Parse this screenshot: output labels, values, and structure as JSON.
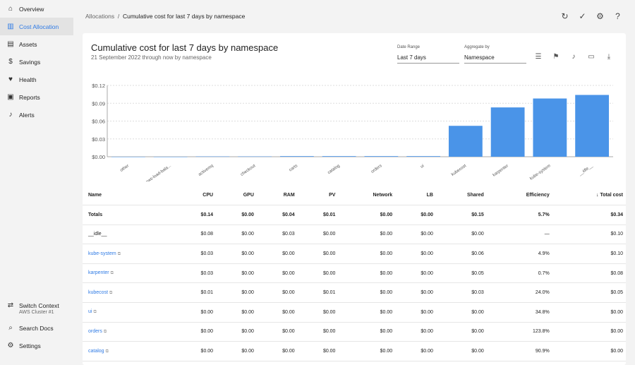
{
  "sidebar": {
    "items": [
      {
        "label": "Overview",
        "icon": "home-icon"
      },
      {
        "label": "Cost Allocation",
        "icon": "bar-chart-icon",
        "active": true
      },
      {
        "label": "Assets",
        "icon": "assets-icon"
      },
      {
        "label": "Savings",
        "icon": "dollar-icon"
      },
      {
        "label": "Health",
        "icon": "heart-icon"
      },
      {
        "label": "Reports",
        "icon": "clipboard-icon"
      },
      {
        "label": "Alerts",
        "icon": "bell-icon"
      }
    ],
    "switch_context": "Switch Context",
    "context_name": "AWS Cluster #1",
    "search_docs": "Search Docs",
    "settings": "Settings"
  },
  "breadcrumb": {
    "parent": "Allocations",
    "separator": "/",
    "current": "Cumulative cost for last 7 days by namespace"
  },
  "report": {
    "title": "Cumulative cost for last 7 days by namespace",
    "subtitle": "21 September 2022 through now by namespace",
    "date_range_label": "Date Range",
    "date_range": "Last 7 days",
    "aggregate_label": "Aggregate by",
    "aggregate": "Namespace"
  },
  "colors": {
    "accent": "#2f7be5",
    "bar": "#4a94e8"
  },
  "chart_data": {
    "type": "bar",
    "categories": [
      "other",
      "aws-load-bala...",
      "activemq",
      "checkout",
      "carts",
      "catalog",
      "orders",
      "ui",
      "kubecost",
      "karpenter",
      "kube-system",
      "__idle__"
    ],
    "values": [
      0.0,
      0.0,
      0.0005,
      0.0005,
      0.001,
      0.001,
      0.001,
      0.001,
      0.052,
      0.083,
      0.098,
      0.104
    ],
    "yticks": [
      "$0.00",
      "$0.03",
      "$0.06",
      "$0.09",
      "$0.12"
    ],
    "ylim": [
      0,
      0.12
    ],
    "grid": true
  },
  "table": {
    "columns": [
      "Name",
      "CPU",
      "GPU",
      "RAM",
      "PV",
      "Network",
      "LB",
      "Shared",
      "Efficiency",
      "↓ Total cost"
    ],
    "rows": [
      [
        "Totals",
        "$0.14",
        "$0.00",
        "$0.04",
        "$0.01",
        "$0.00",
        "$0.00",
        "$0.15",
        "5.7%",
        "$0.34"
      ],
      [
        "__idle__",
        "$0.08",
        "$0.00",
        "$0.03",
        "$0.00",
        "$0.00",
        "$0.00",
        "$0.00",
        "—",
        "$0.10"
      ],
      [
        "kube-system",
        "$0.03",
        "$0.00",
        "$0.00",
        "$0.00",
        "$0.00",
        "$0.00",
        "$0.06",
        "4.9%",
        "$0.10"
      ],
      [
        "karpenter",
        "$0.03",
        "$0.00",
        "$0.00",
        "$0.00",
        "$0.00",
        "$0.00",
        "$0.05",
        "0.7%",
        "$0.08"
      ],
      [
        "kubecost",
        "$0.01",
        "$0.00",
        "$0.00",
        "$0.01",
        "$0.00",
        "$0.00",
        "$0.03",
        "24.0%",
        "$0.05"
      ],
      [
        "ui",
        "$0.00",
        "$0.00",
        "$0.00",
        "$0.00",
        "$0.00",
        "$0.00",
        "$0.00",
        "34.8%",
        "$0.00"
      ],
      [
        "orders",
        "$0.00",
        "$0.00",
        "$0.00",
        "$0.00",
        "$0.00",
        "$0.00",
        "$0.00",
        "123.8%",
        "$0.00"
      ],
      [
        "catalog",
        "$0.00",
        "$0.00",
        "$0.00",
        "$0.00",
        "$0.00",
        "$0.00",
        "$0.00",
        "90.9%",
        "$0.00"
      ]
    ],
    "links": [
      false,
      false,
      true,
      true,
      true,
      true,
      true,
      true
    ]
  }
}
